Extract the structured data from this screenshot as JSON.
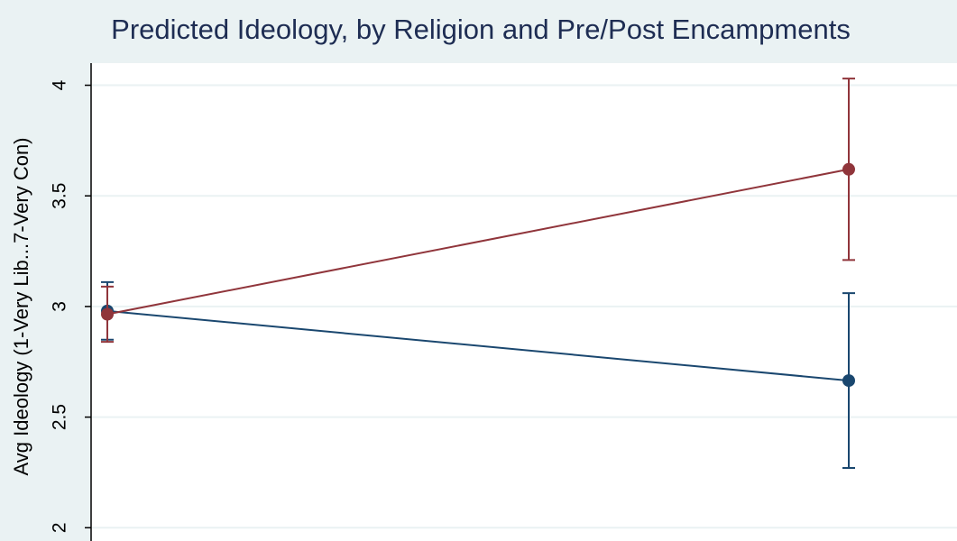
{
  "chart_data": {
    "type": "line",
    "title": "Predicted Ideology, by Religion and Pre/Post Encampments",
    "y_label": "Avg Ideology (1-Very Lib...7-Very Con)",
    "categories": [
      null,
      null
    ],
    "series": [
      {
        "color": "#1a476f",
        "values": [
          2.98,
          2.665
        ],
        "ci_low": [
          2.85,
          2.27
        ],
        "ci_high": [
          3.11,
          3.06
        ]
      },
      {
        "color": "#90353b",
        "values": [
          2.965,
          3.62
        ],
        "ci_low": [
          2.84,
          3.21
        ],
        "ci_high": [
          3.09,
          4.03
        ]
      }
    ],
    "ylim": [
      1.94,
      4.1
    ],
    "yticks": [
      2,
      2.5,
      3,
      3.5,
      4
    ],
    "grid": true
  }
}
